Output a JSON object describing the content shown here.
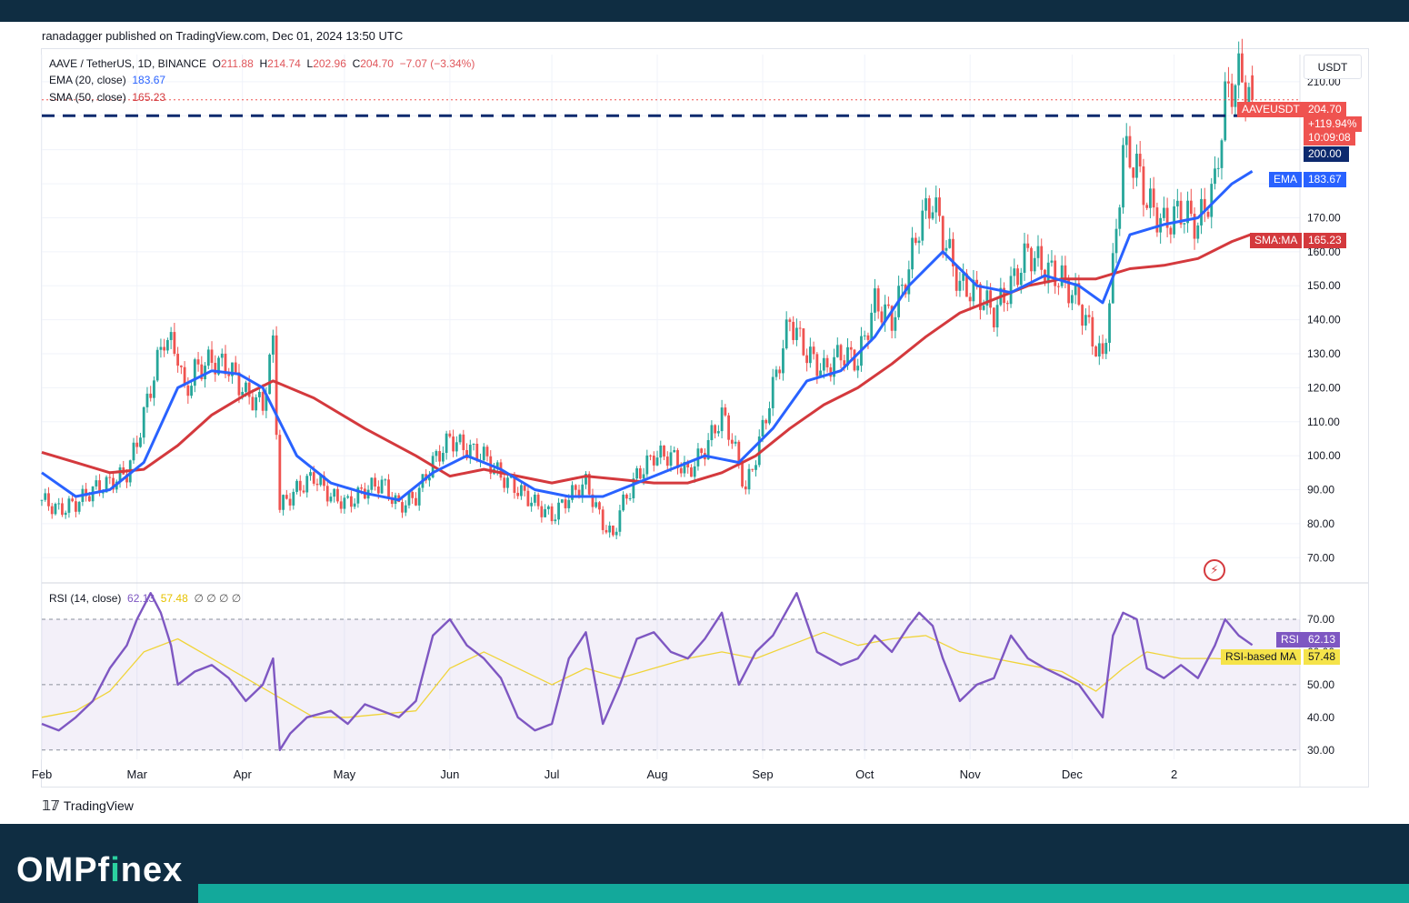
{
  "publisher_line": "ranadagger published on TradingView.com, Dec 01, 2024 13:50 UTC",
  "legend": {
    "symbol": "AAVE / TetherUS, 1D, BINANCE",
    "open_label": "O",
    "open": "211.88",
    "high_label": "H",
    "high": "214.74",
    "low_label": "L",
    "low": "202.96",
    "close_label": "C",
    "close": "204.70",
    "change": "−7.07 (−3.34%)",
    "ema_label": "EMA (20, close)",
    "ema_value": "183.67",
    "sma_label": "SMA (50, close)",
    "sma_value": "165.23",
    "rsi_label": "RSI (14, close)",
    "rsi_value": "62.13",
    "rsi_value2": "57.48",
    "rsi_placeholders": "∅ ∅ ∅ ∅"
  },
  "currency": "USDT",
  "price_tags": {
    "symbol_tag": "AAVEUSDT",
    "price": "204.70",
    "change_pct": "+119.94%",
    "countdown": "10:09:08",
    "level": "200.00",
    "ema_tag": "EMA",
    "ema": "183.67",
    "sma_tag": "SMA:MA",
    "sma": "165.23",
    "rsi_tag": "RSI",
    "rsi": "62.13",
    "rsi_ma_tag": "RSI-based MA",
    "rsi_ma": "57.48"
  },
  "chart_data": {
    "type": "candlestick",
    "symbol": "AAVE / TetherUS",
    "price_axis": {
      "ticks": [
        70,
        80,
        90,
        100,
        110,
        120,
        130,
        140,
        150,
        160,
        170,
        180,
        190,
        200,
        210
      ],
      "labels": [
        "70.00",
        "80.00",
        "90.00",
        "100.00",
        "110.00",
        "120.00",
        "130.00",
        "140.00",
        "150.00",
        "160.00",
        "170.00",
        "180.00",
        "",
        "",
        "210.00"
      ],
      "range": [
        65,
        218
      ]
    },
    "time_axis": {
      "labels": [
        "Feb",
        "Mar",
        "Apr",
        "May",
        "Jun",
        "Jul",
        "Aug",
        "Sep",
        "Oct",
        "Nov",
        "Dec",
        "2"
      ]
    },
    "horizontal_level": 200,
    "price_close": [
      [
        0,
        87
      ],
      [
        5,
        84
      ],
      [
        10,
        86
      ],
      [
        15,
        90
      ],
      [
        20,
        92
      ],
      [
        25,
        95
      ],
      [
        28,
        104
      ],
      [
        32,
        120
      ],
      [
        36,
        135
      ],
      [
        40,
        130
      ],
      [
        42,
        118
      ],
      [
        45,
        125
      ],
      [
        50,
        128
      ],
      [
        55,
        126
      ],
      [
        60,
        118
      ],
      [
        65,
        115
      ],
      [
        68,
        133
      ],
      [
        70,
        85
      ],
      [
        75,
        90
      ],
      [
        80,
        94
      ],
      [
        85,
        88
      ],
      [
        90,
        86
      ],
      [
        95,
        90
      ],
      [
        100,
        92
      ],
      [
        105,
        85
      ],
      [
        110,
        88
      ],
      [
        115,
        98
      ],
      [
        120,
        105
      ],
      [
        125,
        102
      ],
      [
        130,
        100
      ],
      [
        135,
        94
      ],
      [
        140,
        90
      ],
      [
        145,
        86
      ],
      [
        150,
        82
      ],
      [
        155,
        88
      ],
      [
        160,
        92
      ],
      [
        165,
        80
      ],
      [
        168,
        76
      ],
      [
        170,
        84
      ],
      [
        175,
        94
      ],
      [
        180,
        100
      ],
      [
        185,
        100
      ],
      [
        190,
        95
      ],
      [
        195,
        102
      ],
      [
        200,
        112
      ],
      [
        203,
        105
      ],
      [
        207,
        90
      ],
      [
        210,
        100
      ],
      [
        215,
        120
      ],
      [
        220,
        140
      ],
      [
        225,
        130
      ],
      [
        230,
        125
      ],
      [
        235,
        130
      ],
      [
        240,
        128
      ],
      [
        245,
        145
      ],
      [
        250,
        140
      ],
      [
        255,
        155
      ],
      [
        258,
        168
      ],
      [
        262,
        175
      ],
      [
        265,
        165
      ],
      [
        270,
        150
      ],
      [
        275,
        148
      ],
      [
        280,
        142
      ],
      [
        285,
        150
      ],
      [
        290,
        160
      ],
      [
        295,
        155
      ],
      [
        300,
        152
      ],
      [
        305,
        145
      ],
      [
        310,
        132
      ],
      [
        312,
        128
      ],
      [
        315,
        155
      ],
      [
        318,
        190
      ],
      [
        322,
        185
      ],
      [
        325,
        175
      ],
      [
        330,
        168
      ],
      [
        335,
        172
      ],
      [
        340,
        168
      ],
      [
        345,
        180
      ],
      [
        348,
        205
      ],
      [
        352,
        212
      ],
      [
        356,
        204.7
      ]
    ],
    "ema20": [
      [
        0,
        95
      ],
      [
        10,
        88
      ],
      [
        20,
        90
      ],
      [
        30,
        98
      ],
      [
        40,
        120
      ],
      [
        50,
        125
      ],
      [
        58,
        124
      ],
      [
        65,
        120
      ],
      [
        75,
        100
      ],
      [
        85,
        92
      ],
      [
        95,
        89
      ],
      [
        105,
        87
      ],
      [
        115,
        95
      ],
      [
        125,
        100
      ],
      [
        135,
        96
      ],
      [
        145,
        90
      ],
      [
        155,
        88
      ],
      [
        165,
        88
      ],
      [
        175,
        92
      ],
      [
        185,
        96
      ],
      [
        195,
        100
      ],
      [
        205,
        98
      ],
      [
        215,
        108
      ],
      [
        225,
        122
      ],
      [
        235,
        125
      ],
      [
        245,
        135
      ],
      [
        255,
        150
      ],
      [
        265,
        160
      ],
      [
        275,
        150
      ],
      [
        285,
        148
      ],
      [
        295,
        153
      ],
      [
        305,
        150
      ],
      [
        312,
        145
      ],
      [
        320,
        165
      ],
      [
        330,
        168
      ],
      [
        340,
        170
      ],
      [
        350,
        180
      ],
      [
        356,
        183.67
      ]
    ],
    "sma50": [
      [
        0,
        101
      ],
      [
        10,
        98
      ],
      [
        20,
        95
      ],
      [
        30,
        96
      ],
      [
        40,
        103
      ],
      [
        50,
        112
      ],
      [
        60,
        118
      ],
      [
        68,
        122
      ],
      [
        80,
        117
      ],
      [
        95,
        108
      ],
      [
        110,
        100
      ],
      [
        120,
        94
      ],
      [
        130,
        96
      ],
      [
        140,
        94
      ],
      [
        150,
        92
      ],
      [
        160,
        94
      ],
      [
        170,
        93
      ],
      [
        180,
        92
      ],
      [
        190,
        92
      ],
      [
        200,
        95
      ],
      [
        210,
        100
      ],
      [
        220,
        108
      ],
      [
        230,
        115
      ],
      [
        240,
        120
      ],
      [
        250,
        127
      ],
      [
        260,
        135
      ],
      [
        270,
        142
      ],
      [
        280,
        146
      ],
      [
        290,
        150
      ],
      [
        300,
        152
      ],
      [
        310,
        152
      ],
      [
        320,
        155
      ],
      [
        330,
        156
      ],
      [
        340,
        158
      ],
      [
        350,
        163
      ],
      [
        356,
        165.23
      ]
    ],
    "rsi": {
      "range": [
        28,
        80
      ],
      "levels": [
        30,
        50,
        70
      ],
      "axis_labels": [
        "30.00",
        "40.00",
        "50.00",
        "60.00",
        "70.00"
      ],
      "line": [
        [
          0,
          38
        ],
        [
          5,
          36
        ],
        [
          10,
          40
        ],
        [
          15,
          45
        ],
        [
          20,
          55
        ],
        [
          25,
          62
        ],
        [
          28,
          70
        ],
        [
          32,
          78
        ],
        [
          35,
          72
        ],
        [
          38,
          62
        ],
        [
          40,
          50
        ],
        [
          45,
          54
        ],
        [
          50,
          56
        ],
        [
          55,
          52
        ],
        [
          60,
          45
        ],
        [
          65,
          50
        ],
        [
          68,
          58
        ],
        [
          70,
          30
        ],
        [
          73,
          35
        ],
        [
          78,
          40
        ],
        [
          85,
          42
        ],
        [
          90,
          38
        ],
        [
          95,
          44
        ],
        [
          100,
          42
        ],
        [
          105,
          40
        ],
        [
          110,
          45
        ],
        [
          115,
          65
        ],
        [
          120,
          70
        ],
        [
          125,
          62
        ],
        [
          130,
          58
        ],
        [
          135,
          52
        ],
        [
          140,
          40
        ],
        [
          145,
          36
        ],
        [
          150,
          38
        ],
        [
          155,
          58
        ],
        [
          160,
          66
        ],
        [
          165,
          38
        ],
        [
          170,
          50
        ],
        [
          175,
          64
        ],
        [
          180,
          66
        ],
        [
          185,
          60
        ],
        [
          190,
          58
        ],
        [
          195,
          64
        ],
        [
          200,
          72
        ],
        [
          205,
          50
        ],
        [
          210,
          60
        ],
        [
          215,
          65
        ],
        [
          222,
          78
        ],
        [
          228,
          60
        ],
        [
          235,
          56
        ],
        [
          240,
          58
        ],
        [
          245,
          65
        ],
        [
          250,
          60
        ],
        [
          255,
          68
        ],
        [
          258,
          72
        ],
        [
          262,
          68
        ],
        [
          265,
          58
        ],
        [
          270,
          45
        ],
        [
          275,
          50
        ],
        [
          280,
          52
        ],
        [
          285,
          65
        ],
        [
          290,
          58
        ],
        [
          295,
          55
        ],
        [
          305,
          50
        ],
        [
          312,
          40
        ],
        [
          315,
          65
        ],
        [
          318,
          72
        ],
        [
          322,
          70
        ],
        [
          325,
          55
        ],
        [
          330,
          52
        ],
        [
          335,
          56
        ],
        [
          340,
          52
        ],
        [
          345,
          62
        ],
        [
          348,
          70
        ],
        [
          352,
          65
        ],
        [
          356,
          62.13
        ]
      ],
      "ma": [
        [
          0,
          40
        ],
        [
          10,
          42
        ],
        [
          20,
          48
        ],
        [
          30,
          60
        ],
        [
          40,
          64
        ],
        [
          50,
          58
        ],
        [
          60,
          52
        ],
        [
          70,
          46
        ],
        [
          80,
          40
        ],
        [
          90,
          40
        ],
        [
          100,
          41
        ],
        [
          110,
          42
        ],
        [
          120,
          55
        ],
        [
          130,
          60
        ],
        [
          140,
          55
        ],
        [
          150,
          50
        ],
        [
          160,
          55
        ],
        [
          170,
          52
        ],
        [
          180,
          55
        ],
        [
          190,
          58
        ],
        [
          200,
          60
        ],
        [
          210,
          58
        ],
        [
          220,
          62
        ],
        [
          230,
          66
        ],
        [
          240,
          62
        ],
        [
          250,
          64
        ],
        [
          260,
          65
        ],
        [
          270,
          60
        ],
        [
          280,
          58
        ],
        [
          290,
          56
        ],
        [
          300,
          54
        ],
        [
          310,
          48
        ],
        [
          318,
          55
        ],
        [
          325,
          60
        ],
        [
          335,
          58
        ],
        [
          345,
          58
        ],
        [
          356,
          57.48
        ]
      ]
    }
  },
  "footer": {
    "tradingview": "TradingView",
    "brand_a": "OMPf",
    "brand_b": "i",
    "brand_c": "nex"
  }
}
